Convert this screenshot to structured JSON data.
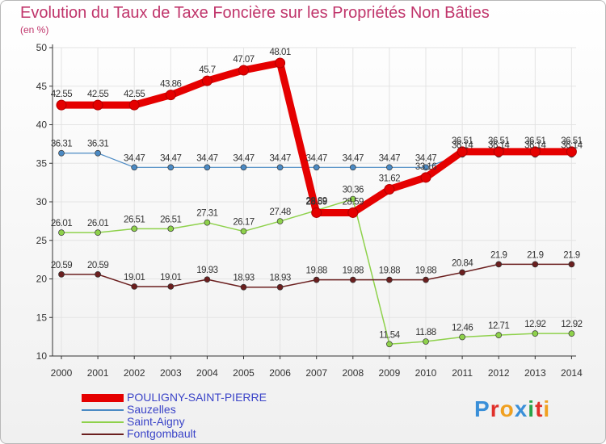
{
  "title": "Evolution du Taux de Taxe Foncière sur les Propriétés Non Bâties",
  "subtitle": "(en %)",
  "logo_text": "Proxiti",
  "colors": {
    "title": "#c0356b",
    "legend_text": "#3b44c8",
    "axis": "#333333",
    "grid": "#e3e3e3"
  },
  "chart_data": {
    "type": "line",
    "title": "Evolution du Taux de Taxe Foncière sur les Propriétés Non Bâties",
    "ylabel": "(en %)",
    "xlabel": "",
    "x": [
      "2000",
      "2001",
      "2002",
      "2003",
      "2004",
      "2005",
      "2006",
      "2007",
      "2008",
      "2009",
      "2010",
      "2011",
      "2012",
      "2013",
      "2014"
    ],
    "ylim": [
      10,
      50
    ],
    "yticks": [
      "10",
      "15",
      "20",
      "25",
      "30",
      "35",
      "40",
      "45",
      "50"
    ],
    "legend_position": "bottom-left",
    "series": [
      {
        "name": "POULIGNY-SAINT-PIERRE",
        "color": "#e50000",
        "values": [
          42.55,
          42.55,
          42.55,
          43.86,
          45.7,
          47.07,
          48.01,
          28.59,
          28.59,
          31.62,
          33.16,
          36.51,
          36.51,
          36.51,
          36.51
        ],
        "labels": [
          "42.55",
          "42.55",
          "42.55",
          "43.86",
          "45.7",
          "47.07",
          "48.01",
          "28.59",
          "28.59",
          "31.62",
          "33.16",
          "36.51",
          "36.51",
          "36.51",
          "36.51"
        ]
      },
      {
        "name": "Sauzelles",
        "color": "#4b8ac4",
        "values": [
          36.31,
          36.31,
          34.47,
          34.47,
          34.47,
          34.47,
          34.47,
          34.47,
          34.47,
          34.47,
          34.47,
          36.14,
          36.14,
          36.14,
          36.14
        ],
        "labels": [
          "36.31",
          "36.31",
          "34.47",
          "34.47",
          "34.47",
          "34.47",
          "34.47",
          "34.47",
          "34.47",
          "34.47",
          "34.47",
          "36.14",
          "36.14",
          "36.14",
          "36.14"
        ]
      },
      {
        "name": "Saint-Aigny",
        "color": "#8ed14b",
        "values": [
          26.01,
          26.01,
          26.51,
          26.51,
          27.31,
          26.17,
          27.48,
          28.89,
          30.36,
          11.54,
          11.88,
          12.46,
          12.71,
          12.92,
          12.92
        ],
        "labels": [
          "26.01",
          "26.01",
          "26.51",
          "26.51",
          "27.31",
          "26.17",
          "27.48",
          "28.89",
          "30.36",
          "11.54",
          "11.88",
          "12.46",
          "12.71",
          "12.92",
          "12.92"
        ]
      },
      {
        "name": "Fontgombault",
        "color": "#6b1f1f",
        "values": [
          20.59,
          20.59,
          19.01,
          19.01,
          19.93,
          18.93,
          18.93,
          19.88,
          19.88,
          19.88,
          19.88,
          20.84,
          21.9,
          21.9,
          21.9
        ],
        "labels": [
          "20.59",
          "20.59",
          "19.01",
          "19.01",
          "19.93",
          "18.93",
          "18.93",
          "19.88",
          "19.88",
          "19.88",
          "19.88",
          "20.84",
          "21.9",
          "21.9",
          "21.9"
        ]
      }
    ]
  }
}
